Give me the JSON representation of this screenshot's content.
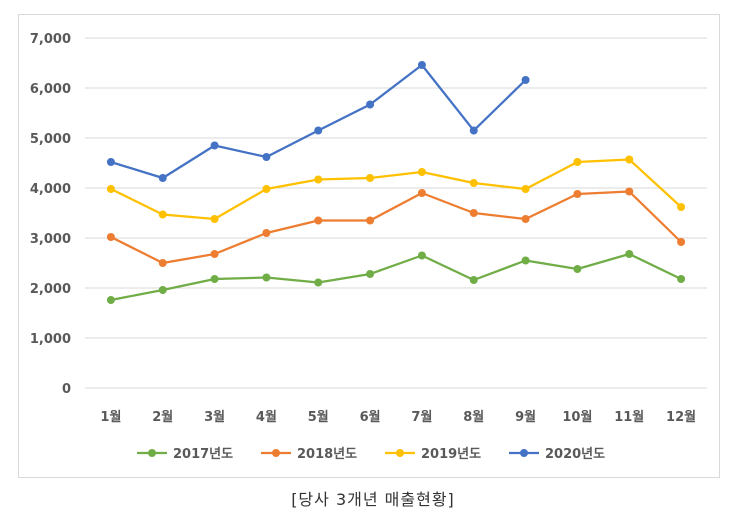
{
  "chart_data": {
    "type": "line",
    "categories": [
      "1월",
      "2월",
      "3월",
      "4월",
      "5월",
      "6월",
      "7월",
      "8월",
      "9월",
      "10월",
      "11월",
      "12월"
    ],
    "series": [
      {
        "name": "2017년도",
        "color": "#70ad47",
        "values": [
          1760,
          1960,
          2180,
          2210,
          2110,
          2280,
          2650,
          2160,
          2550,
          2380,
          2680,
          2180
        ]
      },
      {
        "name": "2018년도",
        "color": "#ed7d31",
        "values": [
          3020,
          2500,
          2680,
          3100,
          3350,
          3350,
          3900,
          3500,
          3380,
          3880,
          3930,
          2920
        ]
      },
      {
        "name": "2019년도",
        "color": "#ffc000",
        "values": [
          3980,
          3470,
          3380,
          3980,
          4170,
          4200,
          4320,
          4100,
          3980,
          4520,
          4570,
          3620
        ]
      },
      {
        "name": "2020년도",
        "color": "#4472c4",
        "values": [
          4520,
          4200,
          4850,
          4620,
          5150,
          5670,
          6460,
          5150,
          6160,
          null,
          null,
          null
        ]
      }
    ],
    "ylim": [
      0,
      7000
    ],
    "yticks": [
      "0",
      "1,000",
      "2,000",
      "3,000",
      "4,000",
      "5,000",
      "6,000",
      "7,000"
    ],
    "grid": true,
    "legend": "bottom",
    "caption": "[당사 3개년 매출현황]"
  }
}
